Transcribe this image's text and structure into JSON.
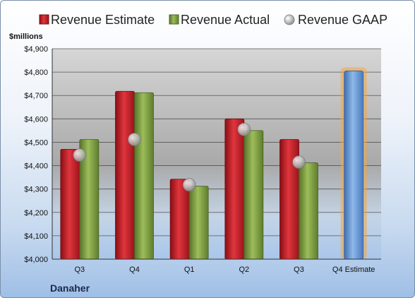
{
  "company": "Danaher",
  "unit_label": "$millions",
  "colors": {
    "estimate": "#c8202a",
    "actual": "#7d9c3e",
    "gaap": "#b8b8b8",
    "forecast": "#6f9fd8",
    "forecast_glow": "#f5a640"
  },
  "chart_data": {
    "type": "bar",
    "categories": [
      "Q3",
      "Q4",
      "Q1",
      "Q2",
      "Q3",
      "Q4 Estimate"
    ],
    "ylim": [
      4000,
      4900
    ],
    "yticks": [
      "$4,000",
      "$4,100",
      "$4,200",
      "$4,300",
      "$4,400",
      "$4,500",
      "$4,600",
      "$4,700",
      "$4,800",
      "$4,900"
    ],
    "ytick_values": [
      4000,
      4100,
      4200,
      4300,
      4400,
      4500,
      4600,
      4700,
      4800,
      4900
    ],
    "grid": true,
    "legend_position": "top",
    "series": [
      {
        "name": "Revenue Estimate",
        "kind": "bar",
        "values": [
          4470,
          4718,
          4342,
          4600,
          4512,
          4805
        ]
      },
      {
        "name": "Revenue Actual",
        "kind": "bar",
        "values": [
          4512,
          4712,
          4312,
          4550,
          4412,
          null
        ]
      },
      {
        "name": "Revenue GAAP",
        "kind": "point",
        "values": [
          4445,
          4512,
          4318,
          4555,
          4415,
          null
        ]
      }
    ]
  }
}
